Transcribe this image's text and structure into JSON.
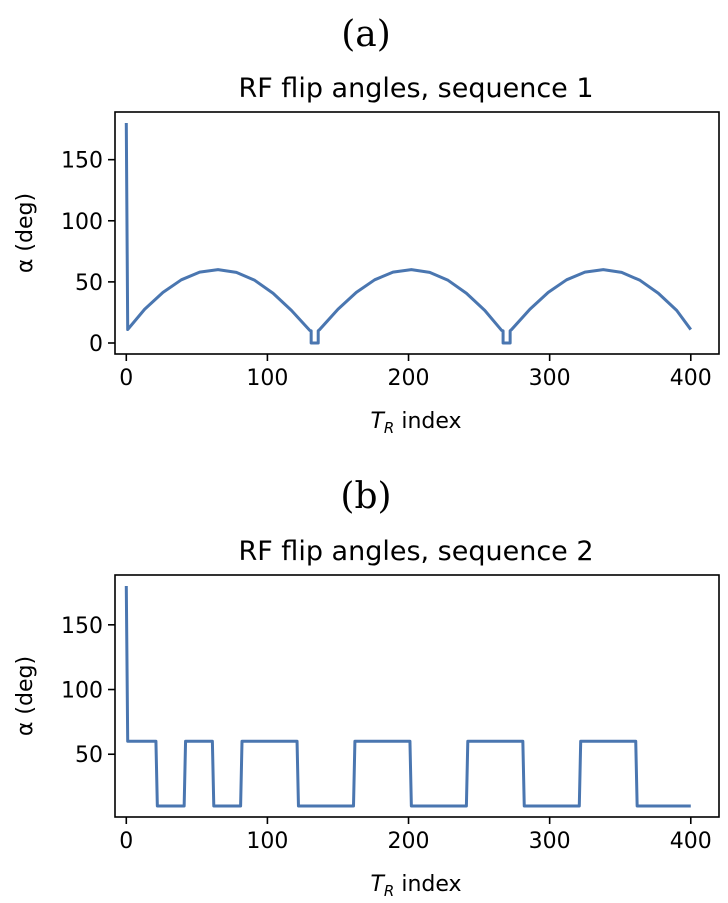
{
  "chart_data": [
    {
      "type": "line",
      "panel_label": "(a)",
      "title": "RF flip angles, sequence 1",
      "xlabel": "T_R index",
      "xlabel_main": "T",
      "xlabel_sub": "R",
      "xlabel_rest": " index",
      "ylabel": "α (deg)",
      "xlim": [
        -8,
        420
      ],
      "ylim": [
        -9,
        189
      ],
      "xticks": [
        0,
        100,
        200,
        300,
        400
      ],
      "yticks": [
        0,
        50,
        100,
        150
      ],
      "grid": false,
      "legend": "none",
      "color": "#4a76b0",
      "series": [
        {
          "x": [
            0,
            0,
            1,
            13,
            26,
            39,
            52,
            65,
            78,
            91,
            104,
            117,
            130,
            131,
            131,
            136,
            136,
            137,
            150,
            163,
            176,
            189,
            202,
            215,
            228,
            241,
            254,
            266,
            267,
            267,
            272,
            272,
            273,
            286,
            299,
            312,
            325,
            338,
            351,
            364,
            377,
            390,
            400
          ],
          "y": [
            180,
            180,
            11,
            27.6,
            41.4,
            51.7,
            58,
            60,
            57.8,
            51.3,
            40.7,
            26.7,
            10.3,
            10,
            0,
            0,
            10,
            11,
            27.6,
            41.4,
            51.7,
            58,
            60,
            57.8,
            51.3,
            40.7,
            26.7,
            10.3,
            10,
            0,
            0,
            10,
            11,
            27.6,
            41.4,
            51.7,
            58,
            60,
            57.8,
            51.3,
            40.7,
            26.7,
            11
          ]
        }
      ]
    },
    {
      "type": "line",
      "panel_label": "(b)",
      "title": "RF flip angles, sequence 2",
      "xlabel": "T_R index",
      "xlabel_main": "T",
      "xlabel_sub": "R",
      "xlabel_rest": " index",
      "ylabel": "α (deg)",
      "xlim": [
        -8,
        420
      ],
      "ylim": [
        1.5,
        188.5
      ],
      "xticks": [
        0,
        100,
        200,
        300,
        400
      ],
      "yticks": [
        50,
        100,
        150
      ],
      "grid": false,
      "legend": "none",
      "color": "#4a76b0",
      "series": [
        {
          "x": [
            0,
            1,
            21,
            22,
            41,
            42,
            61,
            62,
            81,
            82,
            121,
            122,
            161,
            162,
            201,
            202,
            241,
            242,
            281,
            282,
            321,
            322,
            361,
            362,
            400
          ],
          "y": [
            180,
            60,
            60,
            10,
            10,
            60,
            60,
            10,
            10,
            60,
            60,
            10,
            10,
            60,
            60,
            10,
            10,
            60,
            60,
            10,
            10,
            60,
            60,
            10,
            10
          ]
        }
      ]
    }
  ]
}
